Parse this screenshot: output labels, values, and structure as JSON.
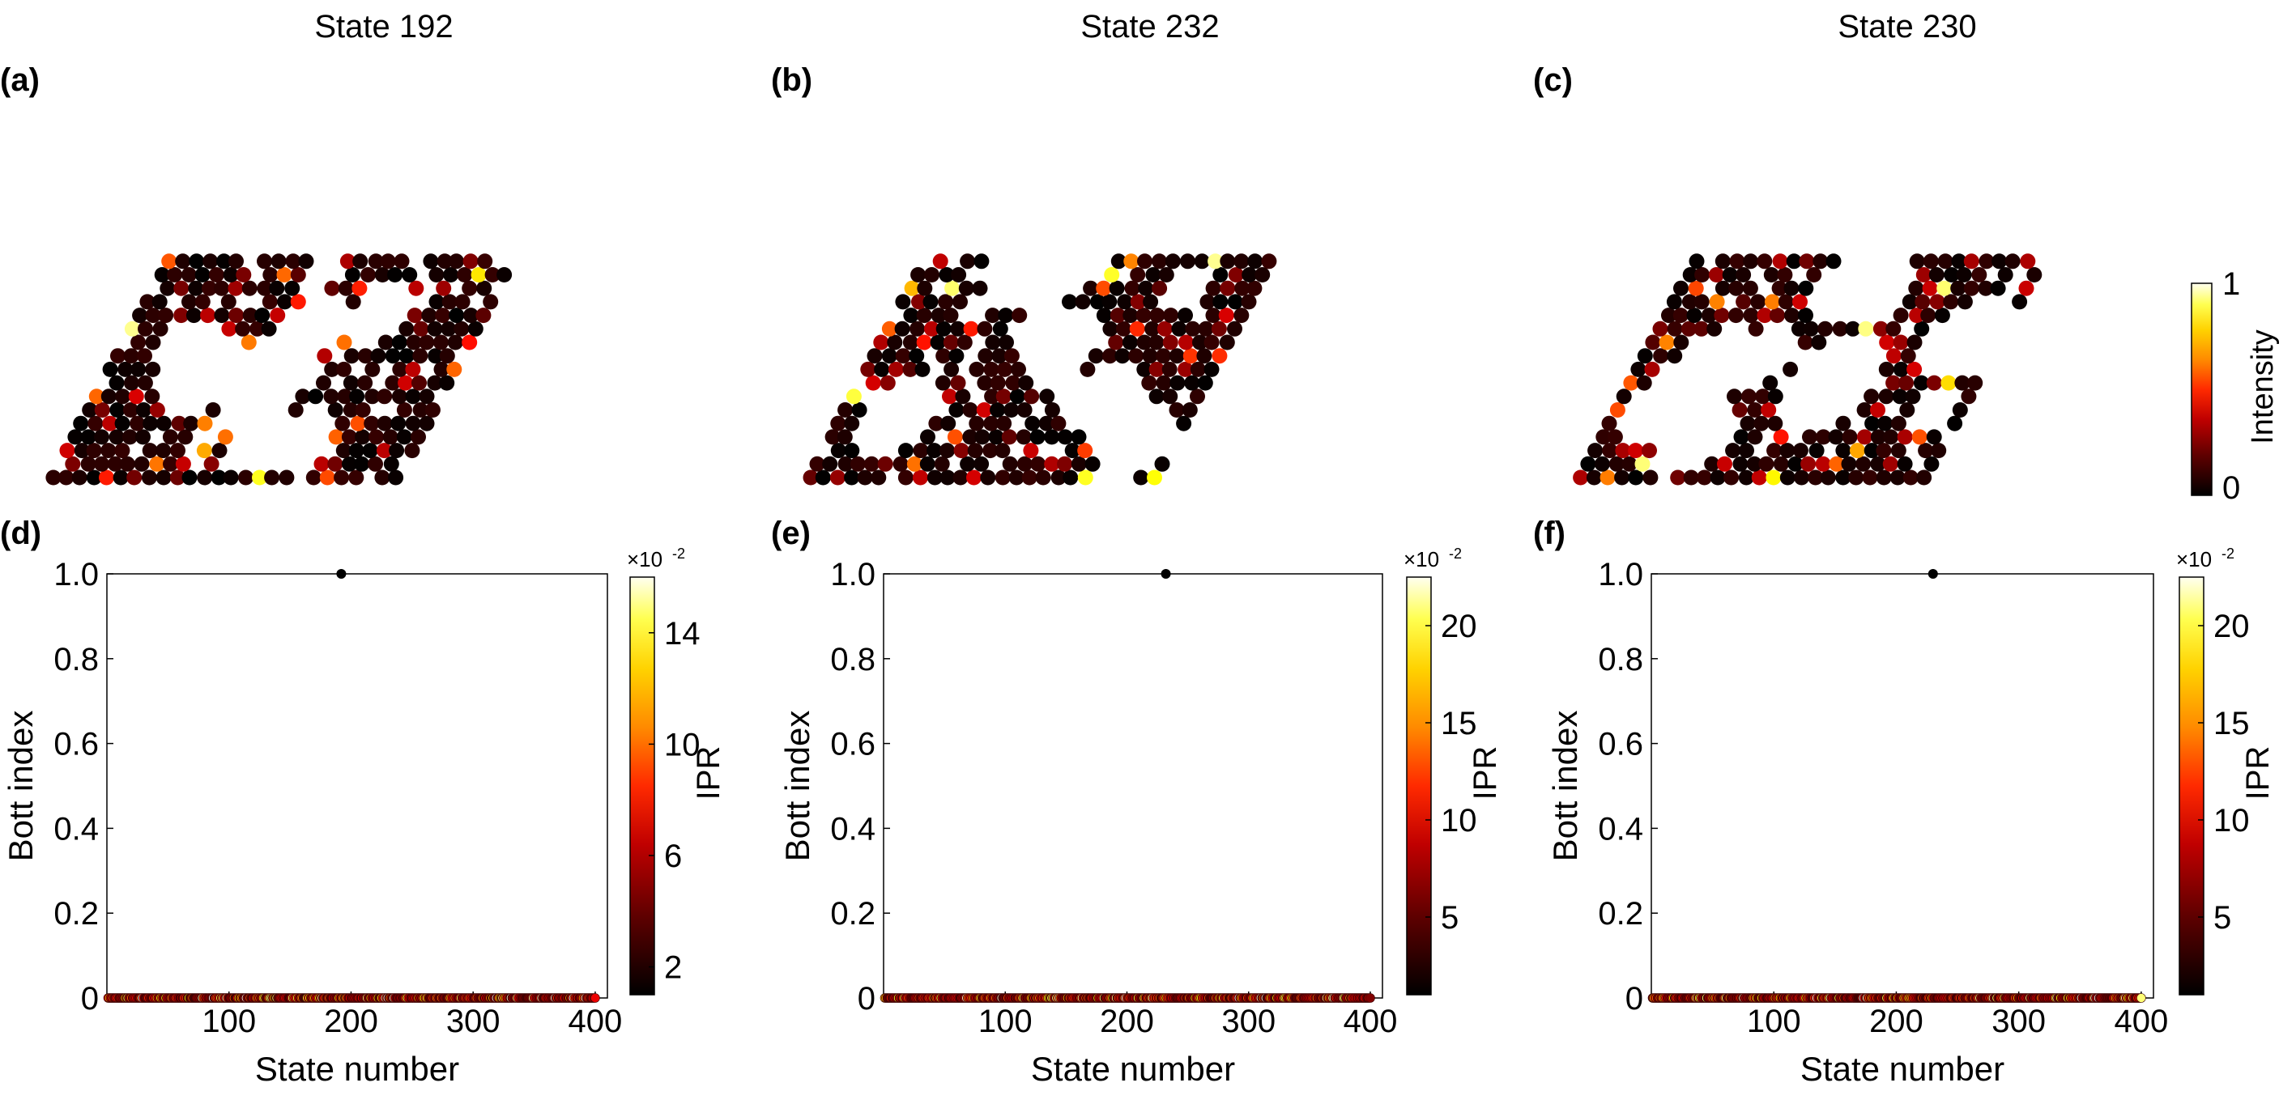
{
  "colors": {
    "hot": [
      "#000000",
      "#5a0000",
      "#b40000",
      "#ff2000",
      "#ff7a00",
      "#ffd000",
      "#ffff40",
      "#ffffe8"
    ]
  },
  "chart_data": [
    {
      "type": "scatter",
      "panel": "(a)",
      "title": "State 192",
      "description_lattice": "parallelogram lattice of sites, colored by intensity",
      "intensity_range": [
        0,
        1
      ]
    },
    {
      "type": "scatter",
      "panel": "(b)",
      "title": "State 232",
      "intensity_range": [
        0,
        1
      ]
    },
    {
      "type": "scatter",
      "panel": "(c)",
      "title": "State 230",
      "intensity_range": [
        0,
        1
      ],
      "colorbar": {
        "label": "Intensity",
        "ticks": [
          "0",
          "1"
        ]
      }
    },
    {
      "type": "scatter",
      "panel": "(d)",
      "xlabel": "State number",
      "ylabel": "Bott index",
      "xlim": [
        0,
        410
      ],
      "ylim": [
        0,
        1
      ],
      "xticks": [
        "100",
        "200",
        "300",
        "400"
      ],
      "yticks": [
        "0",
        "0.2",
        "0.4",
        "0.6",
        "0.8",
        "1.0"
      ],
      "highlight": {
        "x": 192,
        "y": 1.0
      },
      "baseline": {
        "x_range": [
          1,
          400
        ],
        "y": 0
      },
      "colorbar": {
        "label": "IPR",
        "exponent": "×10",
        "exponent_power": "-2",
        "ticks": [
          "2",
          "6",
          "10",
          "14"
        ],
        "tick_values": [
          2,
          6,
          10,
          14
        ],
        "range": [
          1,
          16
        ]
      }
    },
    {
      "type": "scatter",
      "panel": "(e)",
      "xlabel": "State number",
      "ylabel": "Bott index",
      "xlim": [
        0,
        410
      ],
      "ylim": [
        0,
        1
      ],
      "xticks": [
        "100",
        "200",
        "300",
        "400"
      ],
      "yticks": [
        "0",
        "0.2",
        "0.4",
        "0.6",
        "0.8",
        "1.0"
      ],
      "highlight": {
        "x": 232,
        "y": 1.0
      },
      "baseline": {
        "x_range": [
          1,
          400
        ],
        "y": 0
      },
      "colorbar": {
        "label": "IPR",
        "exponent": "×10",
        "exponent_power": "-2",
        "ticks": [
          "5",
          "10",
          "15",
          "20"
        ],
        "tick_values": [
          5,
          10,
          15,
          20
        ],
        "range": [
          1,
          22.5
        ]
      }
    },
    {
      "type": "scatter",
      "panel": "(f)",
      "xlabel": "State number",
      "ylabel": "Bott index",
      "xlim": [
        0,
        410
      ],
      "ylim": [
        0,
        1
      ],
      "xticks": [
        "100",
        "200",
        "300",
        "400"
      ],
      "yticks": [
        "0",
        "0.2",
        "0.4",
        "0.6",
        "0.8",
        "1.0"
      ],
      "highlight": {
        "x": 230,
        "y": 1.0
      },
      "baseline": {
        "x_range": [
          1,
          400
        ],
        "y": 0
      },
      "colorbar": {
        "label": "IPR",
        "exponent": "×10",
        "exponent_power": "-2",
        "ticks": [
          "5",
          "10",
          "15",
          "20"
        ],
        "tick_values": [
          5,
          10,
          15,
          20
        ],
        "range": [
          1,
          22.5
        ]
      }
    }
  ]
}
